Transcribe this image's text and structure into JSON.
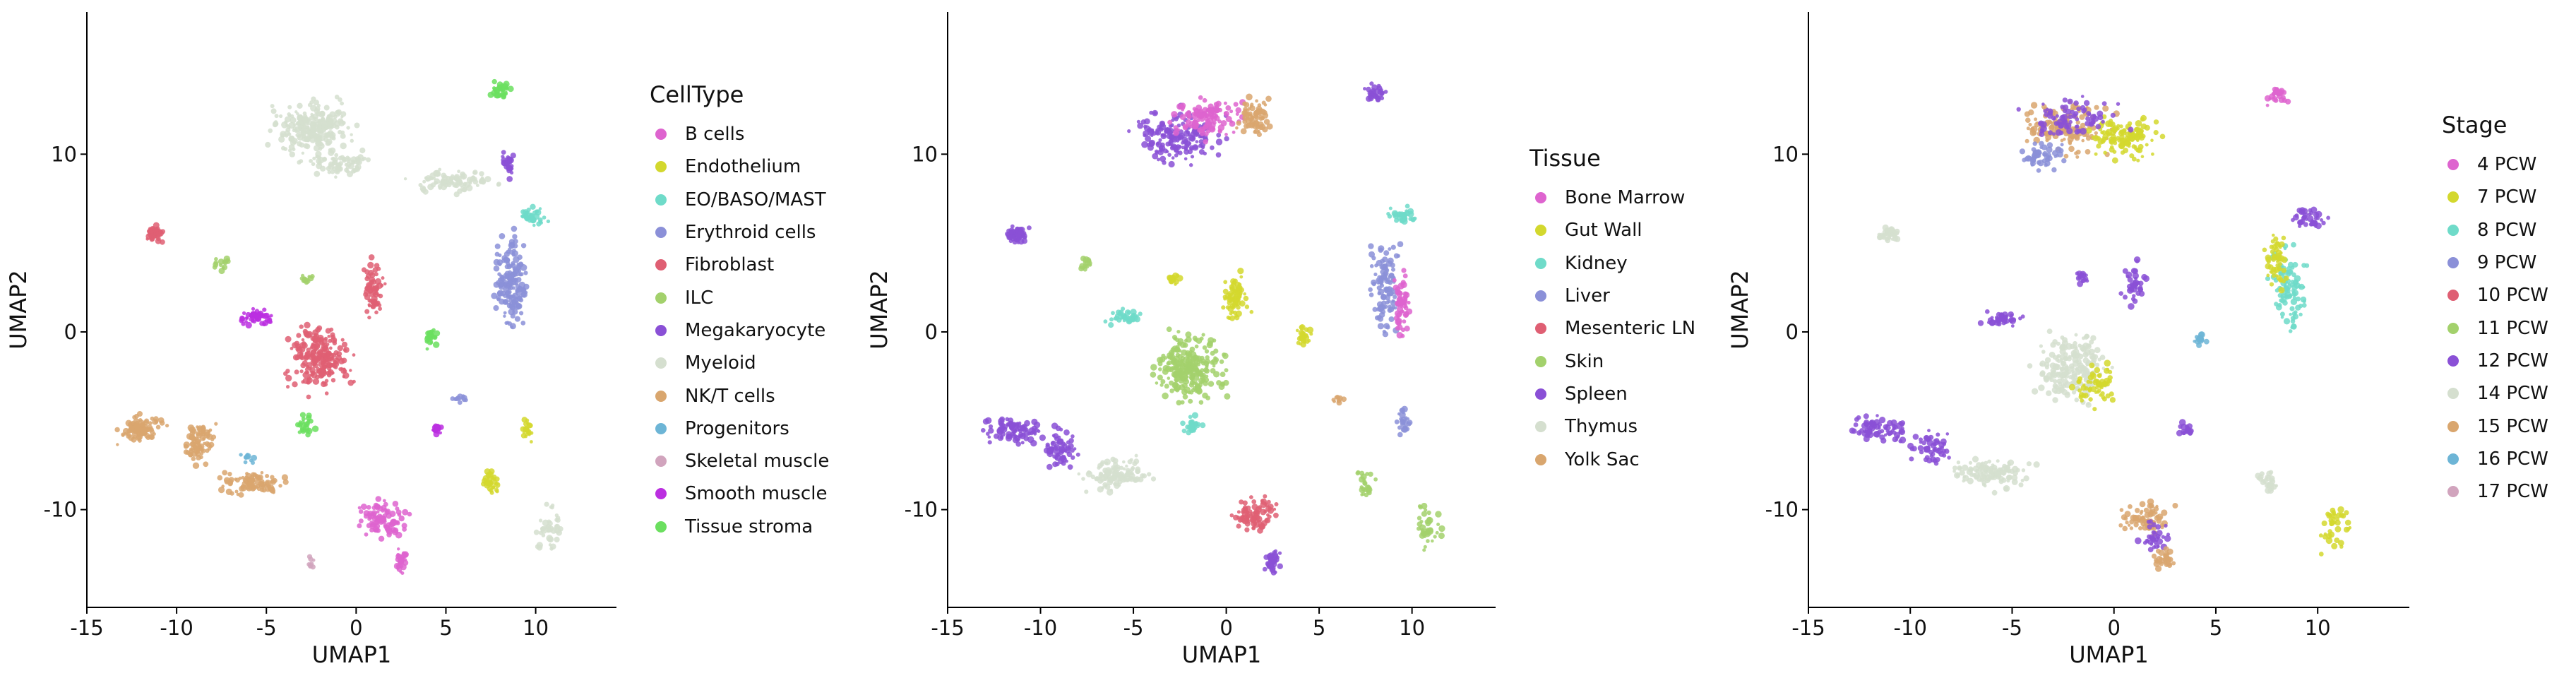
{
  "chart_data": [
    {
      "type": "scatter",
      "xlabel": "UMAP1",
      "ylabel": "UMAP2",
      "xlim": [
        -15,
        14.5
      ],
      "ylim": [
        -15.5,
        18
      ],
      "x_ticks": [
        -15,
        -10,
        -5,
        0,
        5,
        10
      ],
      "y_ticks": [
        -10,
        0,
        10
      ],
      "legend_position": "right",
      "legend_title": "CellType",
      "legend": [
        {
          "label": "B cells",
          "color": "#de64cf"
        },
        {
          "label": "Endothelium",
          "color": "#d3d82e"
        },
        {
          "label": "EO/BASO/MAST",
          "color": "#6fdbc9"
        },
        {
          "label": "Erythroid cells",
          "color": "#8b90d8"
        },
        {
          "label": "Fibroblast",
          "color": "#df5f73"
        },
        {
          "label": "ILC",
          "color": "#a3d16c"
        },
        {
          "label": "Megakaryocyte",
          "color": "#8a50d6"
        },
        {
          "label": "Myeloid",
          "color": "#d5dfcf"
        },
        {
          "label": "NK/T cells",
          "color": "#d9a66e"
        },
        {
          "label": "Progenitors",
          "color": "#6db5d6"
        },
        {
          "label": "Skeletal muscle",
          "color": "#d1a4bd"
        },
        {
          "label": "Smooth muscle",
          "color": "#bb2fe0"
        },
        {
          "label": "Tissue stroma",
          "color": "#6bdf5f"
        }
      ],
      "clusters": [
        {
          "group": "Myeloid",
          "x": -2.5,
          "y": 11.5,
          "rx": 3.2,
          "ry": 2.0,
          "n": 240
        },
        {
          "group": "Myeloid",
          "x": 5.5,
          "y": 8.5,
          "rx": 3.0,
          "ry": 0.9,
          "n": 90
        },
        {
          "group": "Myeloid",
          "x": -1.0,
          "y": 9.5,
          "rx": 2.5,
          "ry": 1.0,
          "n": 80
        },
        {
          "group": "EO/BASO/MAST",
          "x": 9.8,
          "y": 6.5,
          "rx": 1.2,
          "ry": 0.7,
          "n": 40
        },
        {
          "group": "Megakaryocyte",
          "x": 8.5,
          "y": 9.5,
          "rx": 0.4,
          "ry": 1.0,
          "n": 30
        },
        {
          "group": "Erythroid cells",
          "x": 8.6,
          "y": 2.8,
          "rx": 1.2,
          "ry": 3.6,
          "n": 170
        },
        {
          "group": "Fibroblast",
          "x": -11.2,
          "y": 5.5,
          "rx": 0.8,
          "ry": 0.6,
          "n": 50
        },
        {
          "group": "Fibroblast",
          "x": -2.0,
          "y": -1.5,
          "rx": 2.3,
          "ry": 2.4,
          "n": 220
        },
        {
          "group": "Fibroblast",
          "x": 1.0,
          "y": 2.5,
          "rx": 0.8,
          "ry": 2.2,
          "n": 60
        },
        {
          "group": "Smooth muscle",
          "x": -5.5,
          "y": 0.8,
          "rx": 1.3,
          "ry": 0.6,
          "n": 50
        },
        {
          "group": "Smooth muscle",
          "x": 4.5,
          "y": -5.5,
          "rx": 0.4,
          "ry": 0.4,
          "n": 15
        },
        {
          "group": "NK/T cells",
          "x": -12.0,
          "y": -5.5,
          "rx": 1.8,
          "ry": 1.0,
          "n": 90
        },
        {
          "group": "NK/T cells",
          "x": -8.8,
          "y": -6.3,
          "rx": 1.2,
          "ry": 1.6,
          "n": 80
        },
        {
          "group": "NK/T cells",
          "x": -5.8,
          "y": -8.5,
          "rx": 2.3,
          "ry": 1.0,
          "n": 90
        },
        {
          "group": "B cells",
          "x": 1.5,
          "y": -10.5,
          "rx": 1.8,
          "ry": 1.4,
          "n": 100
        },
        {
          "group": "B cells",
          "x": 2.5,
          "y": -12.8,
          "rx": 0.5,
          "ry": 0.9,
          "n": 30
        },
        {
          "group": "Tissue stroma",
          "x": 8.0,
          "y": 13.5,
          "rx": 0.8,
          "ry": 0.8,
          "n": 30
        },
        {
          "group": "Tissue stroma",
          "x": 4.2,
          "y": -0.3,
          "rx": 0.5,
          "ry": 0.9,
          "n": 25
        },
        {
          "group": "Tissue stroma",
          "x": -2.8,
          "y": -5.3,
          "rx": 0.7,
          "ry": 0.8,
          "n": 25
        },
        {
          "group": "ILC",
          "x": -7.5,
          "y": 3.8,
          "rx": 0.5,
          "ry": 0.5,
          "n": 15
        },
        {
          "group": "ILC",
          "x": -2.8,
          "y": 3.0,
          "rx": 0.5,
          "ry": 0.4,
          "n": 15
        },
        {
          "group": "Endothelium",
          "x": 7.5,
          "y": -8.5,
          "rx": 0.6,
          "ry": 1.0,
          "n": 30
        },
        {
          "group": "Endothelium",
          "x": 9.5,
          "y": -5.5,
          "rx": 0.5,
          "ry": 0.8,
          "n": 20
        },
        {
          "group": "Erythroid cells",
          "x": 5.8,
          "y": -3.8,
          "rx": 0.6,
          "ry": 0.3,
          "n": 10
        },
        {
          "group": "Myeloid",
          "x": 10.8,
          "y": -11.0,
          "rx": 1.0,
          "ry": 1.8,
          "n": 40
        },
        {
          "group": "Skeletal muscle",
          "x": -2.5,
          "y": -13.0,
          "rx": 0.2,
          "ry": 0.5,
          "n": 8
        },
        {
          "group": "Progenitors",
          "x": -6.0,
          "y": -7.0,
          "rx": 0.5,
          "ry": 0.5,
          "n": 10
        }
      ]
    },
    {
      "type": "scatter",
      "xlabel": "UMAP1",
      "ylabel": "UMAP2",
      "xlim": [
        -15,
        14.5
      ],
      "ylim": [
        -15.5,
        18
      ],
      "x_ticks": [
        -15,
        -10,
        -5,
        0,
        5,
        10
      ],
      "y_ticks": [
        -10,
        0,
        10
      ],
      "legend_position": "right",
      "legend_title": "Tissue",
      "legend": [
        {
          "label": "Bone Marrow",
          "color": "#de64cf"
        },
        {
          "label": "Gut Wall",
          "color": "#d3d82e"
        },
        {
          "label": "Kidney",
          "color": "#6fdbc9"
        },
        {
          "label": "Liver",
          "color": "#8b90d8"
        },
        {
          "label": "Mesenteric LN",
          "color": "#df5f73"
        },
        {
          "label": "Skin",
          "color": "#a3d16c"
        },
        {
          "label": "Spleen",
          "color": "#8a50d6"
        },
        {
          "label": "Thymus",
          "color": "#d5dfcf"
        },
        {
          "label": "Yolk Sac",
          "color": "#d9a66e"
        }
      ],
      "clusters": [
        {
          "group": "Spleen",
          "x": -2.5,
          "y": 11.0,
          "rx": 3.0,
          "ry": 2.0,
          "n": 180
        },
        {
          "group": "Bone Marrow",
          "x": -1.0,
          "y": 12.0,
          "rx": 2.8,
          "ry": 1.5,
          "n": 120
        },
        {
          "group": "Yolk Sac",
          "x": 1.5,
          "y": 12.0,
          "rx": 1.2,
          "ry": 1.5,
          "n": 70
        },
        {
          "group": "Kidney",
          "x": 9.5,
          "y": 6.5,
          "rx": 1.2,
          "ry": 0.7,
          "n": 30
        },
        {
          "group": "Liver",
          "x": 8.6,
          "y": 2.8,
          "rx": 1.2,
          "ry": 3.6,
          "n": 110
        },
        {
          "group": "Bone Marrow",
          "x": 9.5,
          "y": 1.5,
          "rx": 0.6,
          "ry": 2.5,
          "n": 60
        },
        {
          "group": "Spleen",
          "x": -11.2,
          "y": 5.5,
          "rx": 0.8,
          "ry": 0.6,
          "n": 50
        },
        {
          "group": "Skin",
          "x": -2.0,
          "y": -2.0,
          "rx": 2.5,
          "ry": 2.5,
          "n": 250
        },
        {
          "group": "Gut Wall",
          "x": 0.5,
          "y": 2.0,
          "rx": 1.0,
          "ry": 2.0,
          "n": 70
        },
        {
          "group": "Kidney",
          "x": -5.5,
          "y": 0.8,
          "rx": 1.3,
          "ry": 0.6,
          "n": 40
        },
        {
          "group": "Spleen",
          "x": -11.5,
          "y": -5.5,
          "rx": 2.0,
          "ry": 1.0,
          "n": 90
        },
        {
          "group": "Thymus",
          "x": -6.0,
          "y": -8.0,
          "rx": 2.5,
          "ry": 1.2,
          "n": 110
        },
        {
          "group": "Spleen",
          "x": -9.0,
          "y": -6.5,
          "rx": 1.3,
          "ry": 1.5,
          "n": 60
        },
        {
          "group": "Mesenteric LN",
          "x": 1.5,
          "y": -10.3,
          "rx": 1.8,
          "ry": 1.2,
          "n": 80
        },
        {
          "group": "Spleen",
          "x": 2.5,
          "y": -12.8,
          "rx": 0.6,
          "ry": 0.9,
          "n": 35
        },
        {
          "group": "Spleen",
          "x": 8.0,
          "y": 13.5,
          "rx": 0.8,
          "ry": 0.8,
          "n": 30
        },
        {
          "group": "Gut Wall",
          "x": 4.2,
          "y": -0.3,
          "rx": 0.5,
          "ry": 0.9,
          "n": 25
        },
        {
          "group": "Skin",
          "x": -7.5,
          "y": 3.8,
          "rx": 0.5,
          "ry": 0.5,
          "n": 15
        },
        {
          "group": "Gut Wall",
          "x": -2.8,
          "y": 3.0,
          "rx": 0.5,
          "ry": 0.4,
          "n": 15
        },
        {
          "group": "Skin",
          "x": 10.8,
          "y": -11.0,
          "rx": 1.0,
          "ry": 1.8,
          "n": 40
        },
        {
          "group": "Skin",
          "x": 7.5,
          "y": -8.5,
          "rx": 0.6,
          "ry": 1.0,
          "n": 25
        },
        {
          "group": "Liver",
          "x": 9.5,
          "y": -5.0,
          "rx": 0.5,
          "ry": 1.0,
          "n": 25
        },
        {
          "group": "Kidney",
          "x": -1.8,
          "y": -5.3,
          "rx": 0.7,
          "ry": 0.8,
          "n": 25
        },
        {
          "group": "Yolk Sac",
          "x": 6.0,
          "y": -3.8,
          "rx": 0.5,
          "ry": 0.3,
          "n": 10
        }
      ]
    },
    {
      "type": "scatter",
      "xlabel": "UMAP1",
      "ylabel": "UMAP2",
      "xlim": [
        -15,
        14.5
      ],
      "ylim": [
        -15.5,
        18
      ],
      "x_ticks": [
        -15,
        -10,
        -5,
        0,
        5,
        10
      ],
      "y_ticks": [
        -10,
        0,
        10
      ],
      "legend_position": "right",
      "legend_title": "Stage",
      "legend": [
        {
          "label": "4 PCW",
          "color": "#de64cf"
        },
        {
          "label": "7 PCW",
          "color": "#d3d82e"
        },
        {
          "label": "8 PCW",
          "color": "#6fdbc9"
        },
        {
          "label": "9 PCW",
          "color": "#8b90d8"
        },
        {
          "label": "10 PCW",
          "color": "#df5f73"
        },
        {
          "label": "11 PCW",
          "color": "#a3d16c"
        },
        {
          "label": "12 PCW",
          "color": "#8a50d6"
        },
        {
          "label": "14 PCW",
          "color": "#d5dfcf"
        },
        {
          "label": "15 PCW",
          "color": "#d9a66e"
        },
        {
          "label": "16 PCW",
          "color": "#6db5d6"
        },
        {
          "label": "17 PCW",
          "color": "#d1a4bd"
        }
      ],
      "clusters": [
        {
          "group": "15 PCW",
          "x": -2.5,
          "y": 11.5,
          "rx": 3.0,
          "ry": 2.0,
          "n": 150
        },
        {
          "group": "7 PCW",
          "x": 0.5,
          "y": 11.0,
          "rx": 2.2,
          "ry": 1.6,
          "n": 120
        },
        {
          "group": "12 PCW",
          "x": -2.0,
          "y": 12.0,
          "rx": 3.0,
          "ry": 1.5,
          "n": 80
        },
        {
          "group": "9 PCW",
          "x": -3.5,
          "y": 10.0,
          "rx": 1.5,
          "ry": 1.0,
          "n": 50
        },
        {
          "group": "8 PCW",
          "x": 8.6,
          "y": 2.5,
          "rx": 1.1,
          "ry": 3.5,
          "n": 100
        },
        {
          "group": "7 PCW",
          "x": 8.0,
          "y": 4.0,
          "rx": 0.8,
          "ry": 2.5,
          "n": 50
        },
        {
          "group": "12 PCW",
          "x": 9.5,
          "y": 6.5,
          "rx": 1.2,
          "ry": 0.8,
          "n": 40
        },
        {
          "group": "14 PCW",
          "x": -11.0,
          "y": 5.5,
          "rx": 0.8,
          "ry": 0.6,
          "n": 40
        },
        {
          "group": "14 PCW",
          "x": -2.0,
          "y": -2.0,
          "rx": 2.5,
          "ry": 2.5,
          "n": 200
        },
        {
          "group": "7 PCW",
          "x": -1.0,
          "y": -3.0,
          "rx": 1.5,
          "ry": 1.5,
          "n": 60
        },
        {
          "group": "12 PCW",
          "x": -5.5,
          "y": 0.8,
          "rx": 1.3,
          "ry": 0.6,
          "n": 40
        },
        {
          "group": "12 PCW",
          "x": 1.0,
          "y": 2.5,
          "rx": 0.7,
          "ry": 2.0,
          "n": 40
        },
        {
          "group": "12 PCW",
          "x": -11.5,
          "y": -5.5,
          "rx": 2.0,
          "ry": 1.0,
          "n": 80
        },
        {
          "group": "14 PCW",
          "x": -6.0,
          "y": -8.0,
          "rx": 2.5,
          "ry": 1.2,
          "n": 110
        },
        {
          "group": "12 PCW",
          "x": -9.0,
          "y": -6.5,
          "rx": 1.3,
          "ry": 1.5,
          "n": 60
        },
        {
          "group": "15 PCW",
          "x": 1.5,
          "y": -10.5,
          "rx": 1.8,
          "ry": 1.2,
          "n": 70
        },
        {
          "group": "12 PCW",
          "x": 2.0,
          "y": -11.5,
          "rx": 1.0,
          "ry": 1.0,
          "n": 35
        },
        {
          "group": "15 PCW",
          "x": 2.5,
          "y": -12.8,
          "rx": 0.6,
          "ry": 0.9,
          "n": 30
        },
        {
          "group": "4 PCW",
          "x": 8.0,
          "y": 13.5,
          "rx": 0.8,
          "ry": 0.8,
          "n": 25
        },
        {
          "group": "7 PCW",
          "x": 10.8,
          "y": -11.0,
          "rx": 1.0,
          "ry": 1.8,
          "n": 40
        },
        {
          "group": "12 PCW",
          "x": -1.5,
          "y": 3.0,
          "rx": 0.6,
          "ry": 0.5,
          "n": 15
        },
        {
          "group": "14 PCW",
          "x": 7.5,
          "y": -8.5,
          "rx": 0.6,
          "ry": 1.0,
          "n": 25
        },
        {
          "group": "12 PCW",
          "x": 3.5,
          "y": -5.5,
          "rx": 0.6,
          "ry": 0.7,
          "n": 20
        },
        {
          "group": "16 PCW",
          "x": 4.2,
          "y": -0.3,
          "rx": 0.4,
          "ry": 0.6,
          "n": 15
        }
      ]
    }
  ]
}
